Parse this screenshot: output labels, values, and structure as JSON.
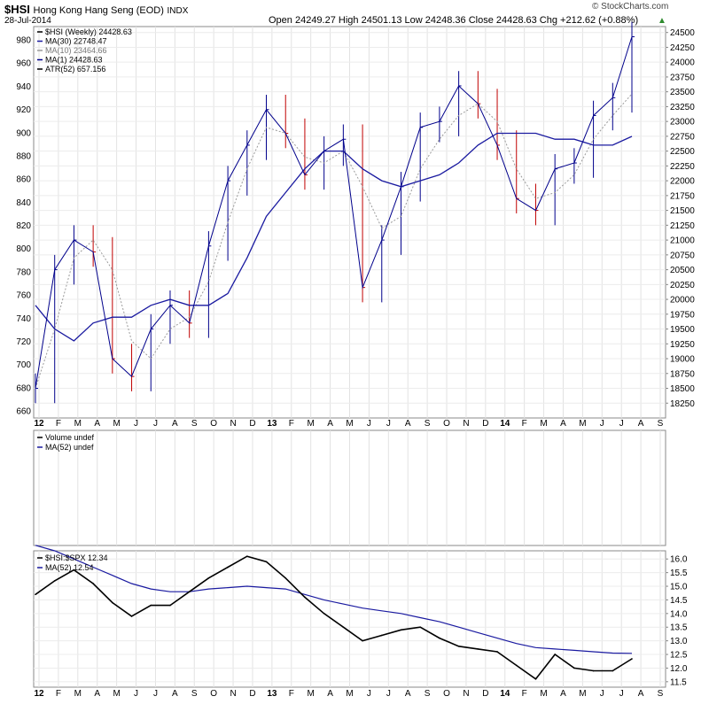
{
  "header": {
    "symbol": "$HSI",
    "name": "Hong Kong Hang Seng (EOD)",
    "exchange": "INDX",
    "date": "28-Jul-2014",
    "quote": "Open 24249.27  High 24501.13  Low 24248.36  Close 24428.63  Chg +212.62 (+0.88%)",
    "watermark": "© StockCharts.com"
  },
  "colors": {
    "price_up": "#00008b",
    "price_down": "#c00000",
    "ma30": "#1a1aa0",
    "ma10": "#9a9a9a",
    "ratio": "#000000",
    "ratio_ma": "#1a1aa0",
    "up_arrow": "#2e8b2e"
  },
  "main_legend": [
    "$HSI (Weekly) 24428.63",
    "MA(30) 22748.47",
    "MA(10) 23464.66",
    "MA(1) 24428.63",
    "ATR(52) 657.156"
  ],
  "volume_legend": [
    "Volume undef",
    "MA(52) undef"
  ],
  "ratio_legend": [
    "$HSI:$SPX 12.34",
    "MA(52) 12.54"
  ],
  "chart_data": [
    {
      "type": "line",
      "x": [
        "2012-01",
        "2012-02",
        "2012-03",
        "2012-04",
        "2012-05",
        "2012-06",
        "2012-07",
        "2012-08",
        "2012-09",
        "2012-10",
        "2012-11",
        "2012-12",
        "2013-01",
        "2013-02",
        "2013-03",
        "2013-04",
        "2013-05",
        "2013-06",
        "2013-07",
        "2013-08",
        "2013-09",
        "2013-10",
        "2013-11",
        "2013-12",
        "2014-01",
        "2014-02",
        "2014-03",
        "2014-04",
        "2014-05",
        "2014-06",
        "2014-07",
        "2014-07-28"
      ],
      "series": [
        {
          "name": "$HSI (Weekly)",
          "values": [
            18500,
            20500,
            21000,
            20800,
            19000,
            18700,
            19500,
            19900,
            19600,
            20900,
            22000,
            22600,
            23200,
            22800,
            22100,
            22500,
            22700,
            20200,
            21000,
            21900,
            22900,
            23000,
            23600,
            23300,
            22600,
            21700,
            21500,
            22200,
            22300,
            23100,
            23400,
            24428.63
          ]
        },
        {
          "name": "MA(30)",
          "values": [
            19900,
            19500,
            19300,
            19600,
            19700,
            19700,
            19900,
            20000,
            19900,
            19900,
            20100,
            20700,
            21400,
            21800,
            22200,
            22500,
            22500,
            22200,
            22000,
            21900,
            22000,
            22100,
            22300,
            22600,
            22800,
            22800,
            22800,
            22700,
            22700,
            22600,
            22600,
            22748.47
          ]
        },
        {
          "name": "MA(10)",
          "values": [
            18500,
            19500,
            20700,
            21000,
            20500,
            19300,
            19000,
            19500,
            19700,
            20300,
            21300,
            22200,
            22900,
            22800,
            22400,
            22300,
            22500,
            21900,
            21200,
            21400,
            22200,
            22700,
            23100,
            23300,
            23000,
            22200,
            21700,
            21800,
            22100,
            22700,
            23100,
            23464.66
          ]
        }
      ],
      "ylim": [
        18000,
        24600
      ],
      "secondary_ticks": [
        660,
        680,
        700,
        720,
        740,
        760,
        780,
        800,
        820,
        840,
        860,
        880,
        900,
        920,
        940,
        960,
        980
      ],
      "y_ticks": [
        18250,
        18500,
        18750,
        19000,
        19250,
        19500,
        19750,
        20000,
        20250,
        20500,
        20750,
        21000,
        21250,
        21500,
        21750,
        22000,
        22250,
        22500,
        22750,
        23000,
        23250,
        23500,
        23750,
        24000,
        24250,
        24500
      ]
    },
    {
      "type": "bar",
      "series": [
        {
          "name": "Volume",
          "values": []
        }
      ]
    },
    {
      "type": "line",
      "x": [
        "2012-01",
        "2012-02",
        "2012-03",
        "2012-04",
        "2012-05",
        "2012-06",
        "2012-07",
        "2012-08",
        "2012-09",
        "2012-10",
        "2012-11",
        "2012-12",
        "2013-01",
        "2013-02",
        "2013-03",
        "2013-04",
        "2013-05",
        "2013-06",
        "2013-07",
        "2013-08",
        "2013-09",
        "2013-10",
        "2013-11",
        "2013-12",
        "2014-01",
        "2014-02",
        "2014-03",
        "2014-04",
        "2014-05",
        "2014-06",
        "2014-07",
        "2014-07-28"
      ],
      "series": [
        {
          "name": "$HSI:$SPX",
          "values": [
            14.7,
            15.2,
            15.6,
            15.1,
            14.4,
            13.9,
            14.3,
            14.3,
            14.8,
            15.3,
            15.7,
            16.1,
            15.9,
            15.3,
            14.6,
            14.0,
            13.5,
            13.0,
            13.2,
            13.4,
            13.5,
            13.1,
            12.8,
            12.7,
            12.6,
            12.1,
            11.6,
            12.5,
            12.0,
            11.9,
            11.9,
            12.34
          ]
        },
        {
          "name": "MA(52)",
          "values": [
            16.5,
            16.3,
            16.0,
            15.7,
            15.4,
            15.1,
            14.9,
            14.8,
            14.8,
            14.9,
            14.95,
            15.0,
            14.95,
            14.9,
            14.7,
            14.5,
            14.35,
            14.2,
            14.1,
            14.0,
            13.85,
            13.7,
            13.5,
            13.3,
            13.1,
            12.9,
            12.75,
            12.7,
            12.65,
            12.6,
            12.55,
            12.54
          ]
        }
      ],
      "ylim": [
        11.3,
        16.3
      ],
      "y_ticks": [
        11.5,
        12.0,
        12.5,
        13.0,
        13.5,
        14.0,
        14.5,
        15.0,
        15.5,
        16.0
      ]
    }
  ],
  "x_axis_labels": [
    "12",
    "F",
    "M",
    "A",
    "M",
    "J",
    "J",
    "A",
    "S",
    "O",
    "N",
    "D",
    "13",
    "F",
    "M",
    "A",
    "M",
    "J",
    "J",
    "A",
    "S",
    "O",
    "N",
    "D",
    "14",
    "F",
    "M",
    "A",
    "M",
    "J",
    "J",
    "A",
    "S"
  ]
}
